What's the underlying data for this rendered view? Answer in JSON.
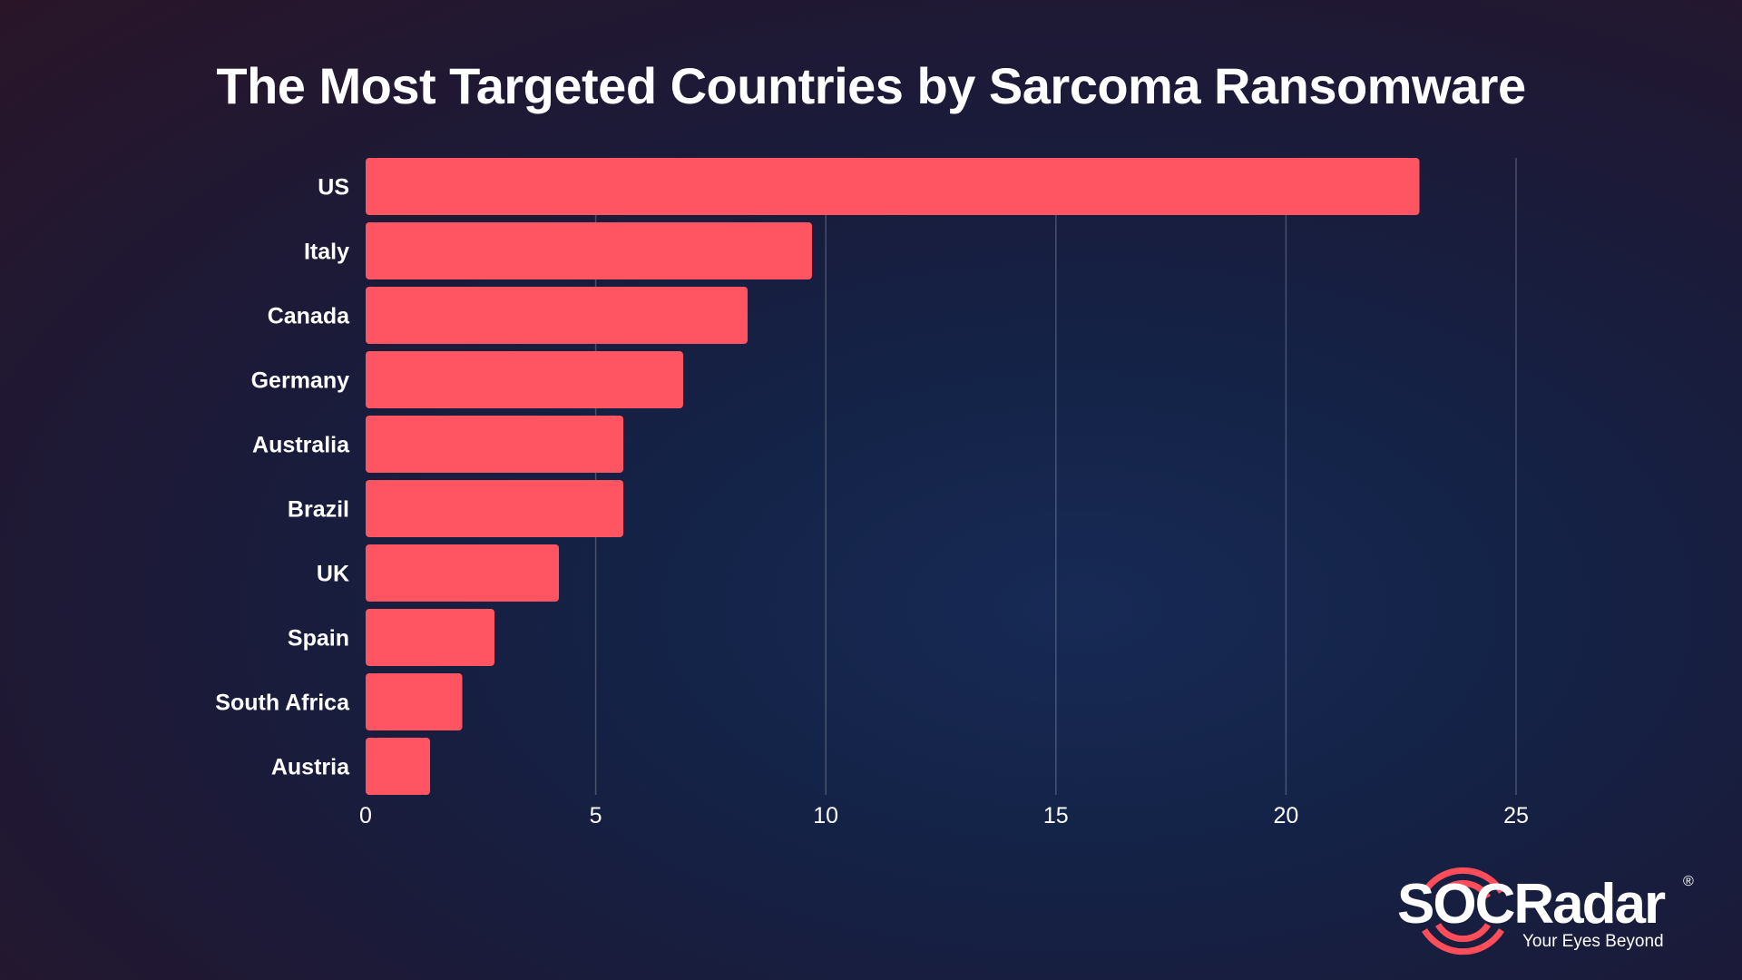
{
  "chart_data": {
    "type": "bar",
    "orientation": "horizontal",
    "title": "The Most Targeted Countries by Sarcoma Ransomware",
    "categories": [
      "US",
      "Italy",
      "Canada",
      "Germany",
      "Australia",
      "Brazil",
      "UK",
      "Spain",
      "South Africa",
      "Austria"
    ],
    "values": [
      22.9,
      9.7,
      8.3,
      6.9,
      5.6,
      5.6,
      4.2,
      2.8,
      2.1,
      1.4
    ],
    "xlim": [
      0,
      25
    ],
    "xticks": [
      "0",
      "5",
      "10",
      "15",
      "20",
      "25"
    ],
    "xlabel": "",
    "ylabel": "",
    "grid": "vertical",
    "bar_color": "#ff5562"
  },
  "logo": {
    "name": "SOCRadar",
    "tagline": "Your Eyes Beyond",
    "reg": "®",
    "accent": "#ff4d5a"
  }
}
